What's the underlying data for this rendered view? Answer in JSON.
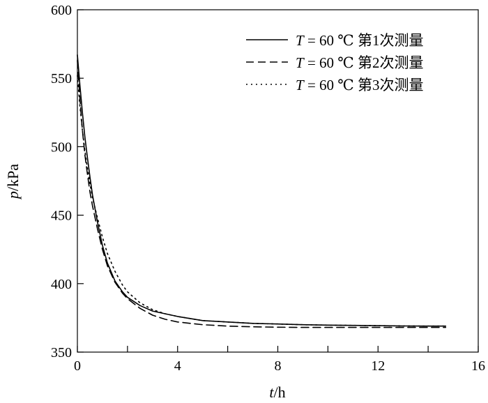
{
  "chart_data": {
    "type": "line",
    "title": "",
    "xlabel": {
      "var": "t",
      "unit": "/h"
    },
    "ylabel": {
      "var": "p",
      "unit": "/kPa"
    },
    "xlim": [
      0,
      16
    ],
    "ylim": [
      350,
      600
    ],
    "xticks": [
      0,
      4,
      8,
      12,
      16
    ],
    "xticks_minor": [
      2,
      6,
      10,
      14
    ],
    "yticks": [
      350,
      400,
      450,
      500,
      550,
      600
    ],
    "grid": false,
    "legend_position": "top-right",
    "series": [
      {
        "name": "T = 60 ℃ 第1次测量",
        "legend": {
          "var": "T",
          "text": " = 60 ℃ 第1次测量"
        },
        "style": "solid",
        "x": [
          0,
          0.1,
          0.2,
          0.3,
          0.4,
          0.5,
          0.6,
          0.8,
          1.0,
          1.2,
          1.5,
          1.8,
          2.0,
          2.5,
          3.0,
          3.5,
          4.0,
          5.0,
          6.0,
          7.0,
          8.0,
          9.0,
          10.0,
          11.0,
          12.0,
          13.0,
          14.0,
          14.7
        ],
        "y": [
          567,
          545,
          525,
          507,
          492,
          478,
          465,
          445,
          428,
          415,
          402,
          394,
          390,
          384,
          380,
          378,
          376,
          373,
          372,
          371,
          370.5,
          370,
          369.7,
          369.5,
          369.3,
          369.1,
          369,
          369
        ]
      },
      {
        "name": "T = 60 ℃ 第2次测量",
        "legend": {
          "var": "T",
          "text": " = 60 ℃ 第2次测量"
        },
        "style": "dashed",
        "x": [
          0,
          0.1,
          0.2,
          0.3,
          0.4,
          0.5,
          0.6,
          0.8,
          1.0,
          1.2,
          1.5,
          1.8,
          2.0,
          2.5,
          3.0,
          3.5,
          4.0,
          5.0,
          6.0,
          7.0,
          8.0,
          9.0,
          10.0,
          11.0,
          12.0,
          13.0,
          14.0,
          14.7
        ],
        "y": [
          563,
          535,
          512,
          494,
          480,
          467,
          457,
          440,
          425,
          413,
          401,
          393,
          389,
          382,
          377,
          374,
          372,
          370,
          369,
          368.5,
          368.2,
          368,
          368,
          368,
          368,
          368,
          368,
          368
        ]
      },
      {
        "name": "T = 60 ℃ 第3次测量",
        "legend": {
          "var": "T",
          "text": " = 60 ℃ 第3次测量"
        },
        "style": "dotted",
        "x": [
          0,
          0.1,
          0.2,
          0.3,
          0.4,
          0.5,
          0.6,
          0.8,
          1.0,
          1.2,
          1.5,
          1.8,
          2.0,
          2.5,
          3.0,
          3.5,
          4.0,
          5.0,
          6.0,
          7.0,
          8.0,
          9.0,
          10.0,
          11.0,
          12.0,
          13.0,
          14.0,
          14.7
        ],
        "y": [
          552,
          530,
          512,
          497,
          484,
          473,
          463,
          448,
          434,
          422,
          409,
          399,
          394,
          386,
          381,
          378,
          376,
          373,
          372,
          371,
          370.5,
          370,
          369.7,
          369.5,
          369.3,
          369.1,
          369,
          369
        ]
      }
    ]
  }
}
